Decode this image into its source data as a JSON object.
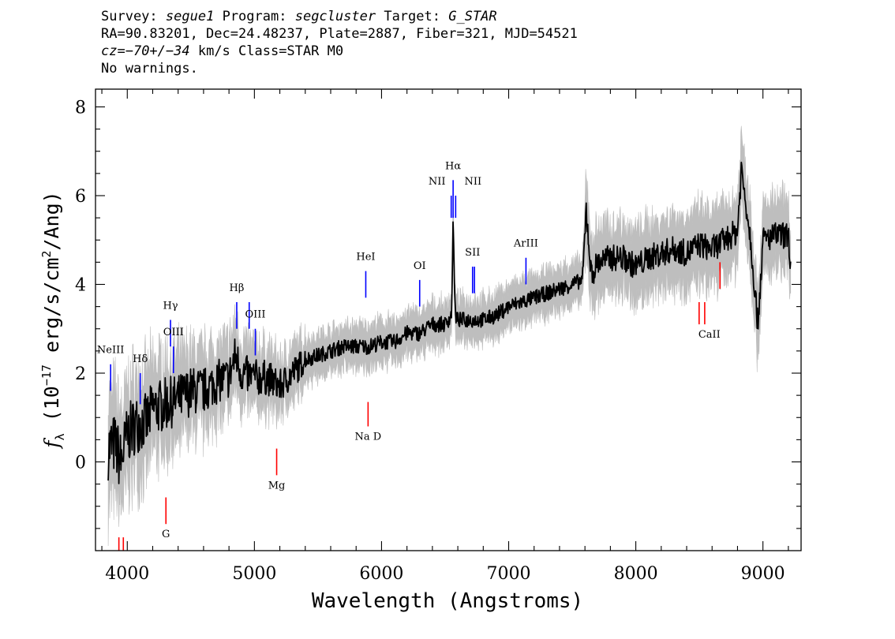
{
  "header": {
    "survey_label": "Survey:",
    "survey_value": "segue1",
    "program_label": "Program:",
    "program_value": "segcluster",
    "target_label": "Target:",
    "target_value": "G_STAR",
    "line2": "RA=90.83201, Dec=24.48237, Plate=2887, Fiber=321, MJD=54521",
    "cz_label": "cz=",
    "cz_value": "−70+/−34",
    "cz_rest": " km/s Class=STAR M0",
    "line4": "No warnings."
  },
  "colors": {
    "flux": "#000000",
    "error_band": "#bebebe",
    "emission_line": "#0000ff",
    "absorption_line": "#ff0000"
  },
  "chart_data": {
    "type": "line",
    "xlabel": "Wavelength (Angstroms)",
    "ylabel_parts": {
      "symbol": "f",
      "symbol_sub": "λ",
      "open": "(10",
      "exp": "−17",
      "unit1": "erg/s/cm",
      "unit_exp": "2",
      "unit2": "/Ang)"
    },
    "xlim": [
      3750,
      9300
    ],
    "ylim": [
      -2.0,
      8.4
    ],
    "x_ticks": [
      "4000",
      "5000",
      "6000",
      "7000",
      "8000",
      "9000"
    ],
    "y_ticks": [
      "0",
      "2",
      "4",
      "6",
      "8"
    ],
    "series": [
      {
        "role": "flux",
        "x": [
          3850,
          3900,
          3950,
          4000,
          4050,
          4100,
          4150,
          4200,
          4300,
          4400,
          4500,
          4600,
          4700,
          4800,
          4850,
          4900,
          5000,
          5100,
          5200,
          5300,
          5400,
          5500,
          5600,
          5700,
          5800,
          5900,
          6000,
          6100,
          6200,
          6300,
          6400,
          6500,
          6550,
          6563,
          6580,
          6600,
          6700,
          6800,
          6900,
          7000,
          7100,
          7200,
          7300,
          7400,
          7500,
          7580,
          7610,
          7650,
          7700,
          7800,
          7900,
          8000,
          8100,
          8200,
          8300,
          8400,
          8500,
          8600,
          8700,
          8800,
          8830,
          8900,
          8960,
          9000,
          9100,
          9200,
          9220
        ],
        "y": [
          0.3,
          0.4,
          0.0,
          0.6,
          0.8,
          0.9,
          0.9,
          1.2,
          1.3,
          1.4,
          1.6,
          1.6,
          1.8,
          1.9,
          2.4,
          2.0,
          1.9,
          1.9,
          1.7,
          2.0,
          2.3,
          2.4,
          2.5,
          2.6,
          2.6,
          2.6,
          2.7,
          2.7,
          2.9,
          2.9,
          3.1,
          3.1,
          3.3,
          5.4,
          3.3,
          3.2,
          3.2,
          3.2,
          3.3,
          3.5,
          3.6,
          3.7,
          3.8,
          3.9,
          4.0,
          4.1,
          5.7,
          4.2,
          4.5,
          4.6,
          4.6,
          4.4,
          4.6,
          4.7,
          4.8,
          4.7,
          4.9,
          4.8,
          5.0,
          5.2,
          6.6,
          5.1,
          3.1,
          5.0,
          5.1,
          5.1,
          4.4
        ]
      }
    ],
    "line_markers": [
      {
        "label": "NeIII",
        "wavelength": 3869,
        "kind": "emission",
        "y0": 1.6,
        "y1": 2.2,
        "label_y": 2.45
      },
      {
        "label": "Hδ",
        "wavelength": 4102,
        "kind": "emission",
        "y0": 1.3,
        "y1": 2.0,
        "label_y": 2.25
      },
      {
        "label": "Hγ",
        "wavelength": 4340,
        "kind": "emission",
        "y0": 2.6,
        "y1": 3.2,
        "label_y": 3.45
      },
      {
        "label": "OIII",
        "wavelength": 4363,
        "kind": "emission",
        "y0": 2.0,
        "y1": 2.6,
        "label_y": 2.85
      },
      {
        "label": "Hβ",
        "wavelength": 4861,
        "kind": "emission",
        "y0": 3.0,
        "y1": 3.6,
        "label_y": 3.85
      },
      {
        "label": "",
        "wavelength": 4959,
        "kind": "emission",
        "y0": 3.0,
        "y1": 3.6,
        "label_y": 3.85
      },
      {
        "label": "OIII",
        "wavelength": 5007,
        "kind": "emission",
        "y0": 2.4,
        "y1": 3.0,
        "label_y": 3.25
      },
      {
        "label": "HeI",
        "wavelength": 5876,
        "kind": "emission",
        "y0": 3.7,
        "y1": 4.3,
        "label_y": 4.55
      },
      {
        "label": "OI",
        "wavelength": 6300,
        "kind": "emission",
        "y0": 3.5,
        "y1": 4.1,
        "label_y": 4.35
      },
      {
        "label": "NII",
        "wavelength": 6548,
        "kind": "emission",
        "y0": 5.5,
        "y1": 6.0,
        "label_y": 6.25
      },
      {
        "label": "Hα",
        "wavelength": 6563,
        "kind": "emission",
        "y0": 5.5,
        "y1": 6.35,
        "label_y": 6.6
      },
      {
        "label": "NII",
        "wavelength": 6583,
        "kind": "emission",
        "y0": 5.5,
        "y1": 6.0,
        "label_y": 6.25
      },
      {
        "label": "SII",
        "wavelength": 6716,
        "kind": "emission",
        "y0": 3.8,
        "y1": 4.4,
        "label_y": 4.65
      },
      {
        "label": "",
        "wavelength": 6731,
        "kind": "emission",
        "y0": 3.8,
        "y1": 4.4,
        "label_y": 4.65
      },
      {
        "label": "ArIII",
        "wavelength": 7136,
        "kind": "emission",
        "y0": 4.0,
        "y1": 4.6,
        "label_y": 4.85
      },
      {
        "label": "G",
        "wavelength": 4304,
        "kind": "absorption",
        "y0": -1.4,
        "y1": -0.8,
        "label_y": -1.7
      },
      {
        "label": "",
        "wavelength": 3934,
        "kind": "absorption",
        "y0": -2.0,
        "y1": -1.7,
        "label_y": -2.0
      },
      {
        "label": "",
        "wavelength": 3969,
        "kind": "absorption",
        "y0": -2.0,
        "y1": -1.7,
        "label_y": -2.0
      },
      {
        "label": "Mg",
        "wavelength": 5175,
        "kind": "absorption",
        "y0": -0.3,
        "y1": 0.3,
        "label_y": -0.6
      },
      {
        "label": "Na D",
        "wavelength": 5894,
        "kind": "absorption",
        "y0": 0.8,
        "y1": 1.35,
        "label_y": 0.5
      },
      {
        "label": "CaII",
        "wavelength": 8498,
        "kind": "absorption",
        "y0": 3.1,
        "y1": 3.6,
        "label_y": 2.8
      },
      {
        "label": "",
        "wavelength": 8542,
        "kind": "absorption",
        "y0": 3.1,
        "y1": 3.6,
        "label_y": 2.8
      },
      {
        "label": "",
        "wavelength": 8662,
        "kind": "absorption",
        "y0": 3.9,
        "y1": 4.5,
        "label_y": 3.6
      }
    ]
  }
}
